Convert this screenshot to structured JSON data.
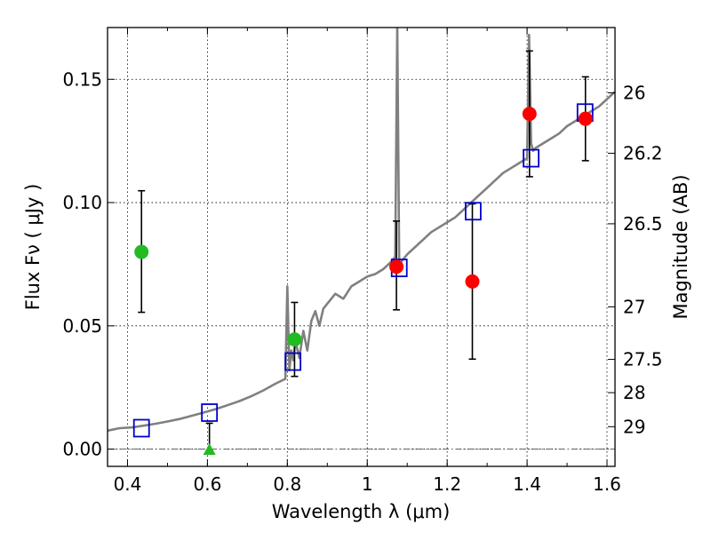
{
  "chart_data": {
    "type": "scatter",
    "xlabel": "Wavelength  λ (μm)",
    "ylabel": "Flux  Fν  ( μJy )",
    "ylabel_right": "Magnitude (AB)",
    "xlim": [
      0.35,
      1.62
    ],
    "ylim": [
      -0.007,
      0.171
    ],
    "grid": true,
    "grid_style": "dotted",
    "x_ticks": [
      {
        "value": 0.4,
        "label": "0.4"
      },
      {
        "value": 0.6,
        "label": "0.6"
      },
      {
        "value": 0.8,
        "label": "0.8"
      },
      {
        "value": 1.0,
        "label": "1"
      },
      {
        "value": 1.2,
        "label": "1.2"
      },
      {
        "value": 1.4,
        "label": "1.4"
      },
      {
        "value": 1.6,
        "label": "1.6"
      }
    ],
    "y_ticks": [
      {
        "value": 0.0,
        "label": "0.00"
      },
      {
        "value": 0.05,
        "label": "0.05"
      },
      {
        "value": 0.1,
        "label": "0.10"
      },
      {
        "value": 0.15,
        "label": "0.15"
      }
    ],
    "right_ticks": [
      {
        "flux": 0.1445,
        "label": "26"
      },
      {
        "flux": 0.12,
        "label": "26.2"
      },
      {
        "flux": 0.0914,
        "label": "26.5"
      },
      {
        "flux": 0.0577,
        "label": "27"
      },
      {
        "flux": 0.0364,
        "label": "27.5"
      },
      {
        "flux": 0.0229,
        "label": "28"
      },
      {
        "flux": 0.0091,
        "label": "29"
      }
    ],
    "zero_line": {
      "y": 0.0
    },
    "colors": {
      "model": "#808080",
      "model_points": "#0000cc",
      "optical_detection": "#22bb22",
      "nir_detection": "#ff0000",
      "errorbar": "#000000"
    },
    "model_spectrum": {
      "x": [
        0.35,
        0.38,
        0.41,
        0.44,
        0.47,
        0.5,
        0.53,
        0.56,
        0.59,
        0.62,
        0.65,
        0.68,
        0.71,
        0.74,
        0.77,
        0.795,
        0.8,
        0.805,
        0.81,
        0.815,
        0.82,
        0.83,
        0.84,
        0.85,
        0.86,
        0.87,
        0.88,
        0.89,
        0.9,
        0.92,
        0.94,
        0.96,
        0.98,
        1.0,
        1.02,
        1.04,
        1.06,
        1.07,
        1.075,
        1.08,
        1.1,
        1.12,
        1.14,
        1.16,
        1.18,
        1.2,
        1.22,
        1.24,
        1.26,
        1.28,
        1.3,
        1.32,
        1.34,
        1.36,
        1.38,
        1.4,
        1.405,
        1.41,
        1.415,
        1.42,
        1.44,
        1.46,
        1.48,
        1.5,
        1.52,
        1.54,
        1.56,
        1.58,
        1.6,
        1.62
      ],
      "y": [
        0.0075,
        0.0085,
        0.0088,
        0.0095,
        0.0103,
        0.0112,
        0.0122,
        0.0135,
        0.0148,
        0.0162,
        0.0178,
        0.0195,
        0.0215,
        0.0238,
        0.0265,
        0.0285,
        0.066,
        0.032,
        0.04,
        0.036,
        0.044,
        0.037,
        0.048,
        0.04,
        0.052,
        0.056,
        0.05,
        0.057,
        0.059,
        0.063,
        0.061,
        0.066,
        0.068,
        0.07,
        0.071,
        0.073,
        0.076,
        0.078,
        0.172,
        0.075,
        0.079,
        0.082,
        0.085,
        0.088,
        0.09,
        0.092,
        0.094,
        0.097,
        0.1,
        0.103,
        0.106,
        0.109,
        0.112,
        0.114,
        0.116,
        0.118,
        0.168,
        0.124,
        0.121,
        0.122,
        0.124,
        0.126,
        0.128,
        0.131,
        0.133,
        0.135,
        0.137,
        0.139,
        0.142,
        0.145
      ]
    },
    "model_points": [
      {
        "x": 0.435,
        "y": 0.0085
      },
      {
        "x": 0.605,
        "y": 0.0148
      },
      {
        "x": 0.814,
        "y": 0.0355
      },
      {
        "x": 1.08,
        "y": 0.0735
      },
      {
        "x": 1.265,
        "y": 0.0965
      },
      {
        "x": 1.41,
        "y": 0.118
      },
      {
        "x": 1.545,
        "y": 0.1365
      }
    ],
    "detections": [
      {
        "x": 0.435,
        "y": 0.08,
        "err_low": 0.0555,
        "err_high": 0.1048,
        "marker": "circle",
        "color": "optical_detection"
      },
      {
        "x": 0.818,
        "y": 0.0445,
        "err_low": 0.0295,
        "err_high": 0.0595,
        "marker": "circle",
        "color": "optical_detection"
      },
      {
        "x": 1.073,
        "y": 0.074,
        "err_low": 0.0565,
        "err_high": 0.0925,
        "marker": "circle",
        "color": "nir_detection"
      },
      {
        "x": 1.263,
        "y": 0.068,
        "err_low": 0.0365,
        "err_high": 0.0995,
        "marker": "circle",
        "color": "nir_detection"
      },
      {
        "x": 1.406,
        "y": 0.136,
        "err_low": 0.1105,
        "err_high": 0.1615,
        "marker": "circle",
        "color": "nir_detection"
      },
      {
        "x": 1.546,
        "y": 0.134,
        "err_low": 0.117,
        "err_high": 0.151,
        "marker": "circle",
        "color": "nir_detection"
      }
    ],
    "upper_limits": [
      {
        "x": 0.605,
        "y": -0.0005,
        "err_high": 0.0105,
        "marker": "triangle",
        "color": "optical_detection"
      }
    ]
  }
}
